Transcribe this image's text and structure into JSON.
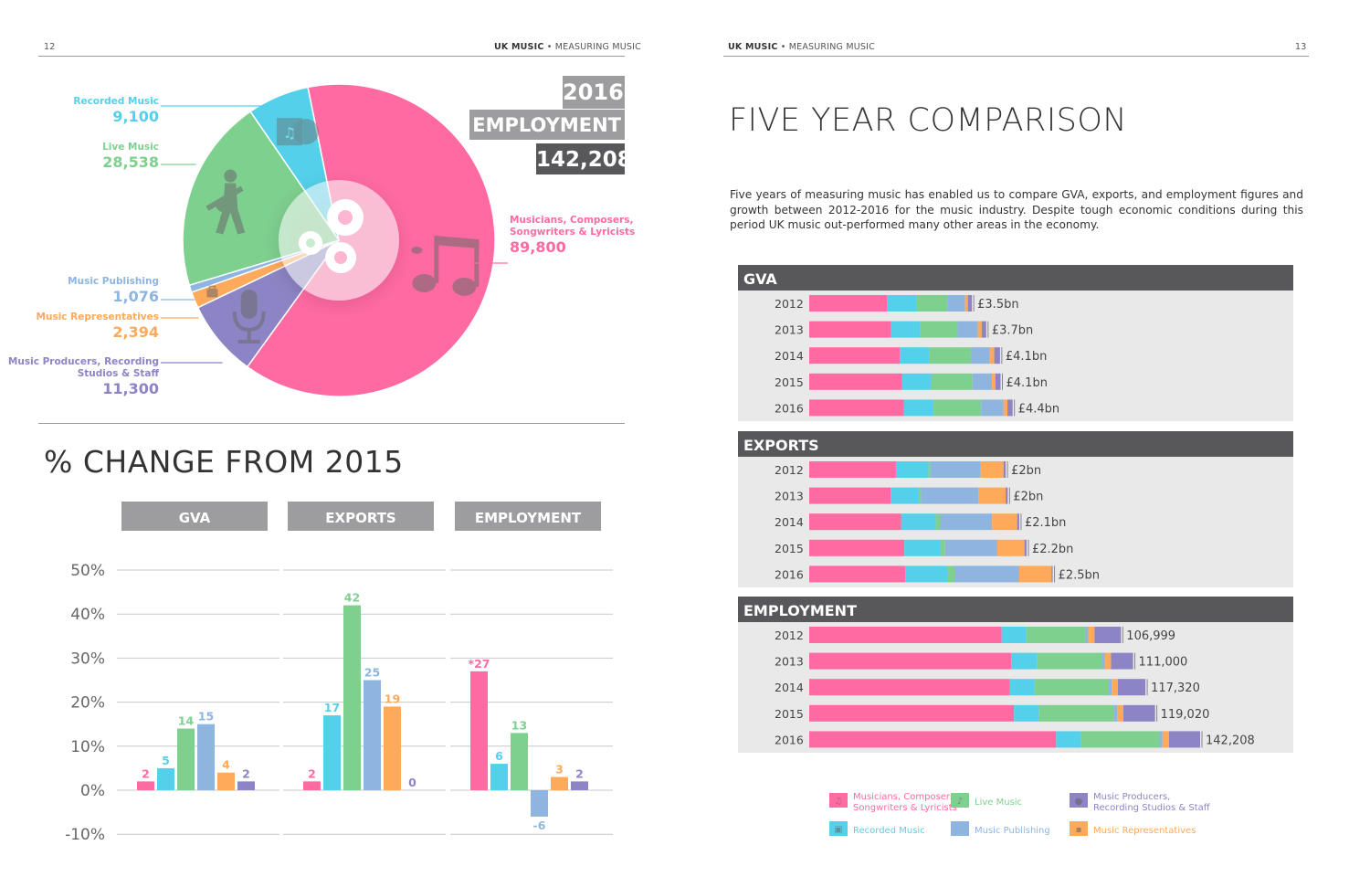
{
  "header": {
    "left_page_number": "12",
    "right_page_number": "13",
    "brand": "UK MUSIC",
    "separator": " • ",
    "subtitle": "MEASURING MUSIC"
  },
  "employment_box": {
    "year": "2016",
    "label": "EMPLOYMENT",
    "total": "142,208"
  },
  "colors": {
    "musicians": "#ff6aa3",
    "recorded": "#54d0ea",
    "live": "#7ed08f",
    "publishing": "#8db5e0",
    "representatives": "#ffa95a",
    "producers": "#8c84c4",
    "section_bar": "#58585a",
    "axis_header": "#9d9d9f"
  },
  "donut": {
    "segments": [
      {
        "key": "musicians",
        "label": "Musicians, Composers, Songwriters & Lyricists",
        "label_lines": [
          "Musicians, Composers,",
          "Songwriters & Lyricists"
        ],
        "value": 89800,
        "value_text": "89,800",
        "icon": "music-notes-icon"
      },
      {
        "key": "producers",
        "label": "Music Producers, Recording Studios & Staff",
        "label_lines": [
          "Music Producers, Recording",
          "Studios & Staff"
        ],
        "value": 11300,
        "value_text": "11,300",
        "icon": "microphone-icon"
      },
      {
        "key": "representatives",
        "label": "Music Representatives",
        "label_lines": [
          "Music Representatives"
        ],
        "value": 2394,
        "value_text": "2,394",
        "icon": "briefcase-icon"
      },
      {
        "key": "publishing",
        "label": "Music Publishing",
        "label_lines": [
          "Music Publishing"
        ],
        "value": 1076,
        "value_text": "1,076",
        "icon": ""
      },
      {
        "key": "live",
        "label": "Live Music",
        "label_lines": [
          "Live Music"
        ],
        "value": 28538,
        "value_text": "28,538",
        "icon": "guitarist-icon"
      },
      {
        "key": "recorded",
        "label": "Recorded Music",
        "label_lines": [
          "Recorded Music"
        ],
        "value": 9100,
        "value_text": "9,100",
        "icon": "record-sleeve-icon"
      }
    ],
    "center_icon": "gears-icon"
  },
  "change_title": "% CHANGE FROM 2015",
  "five_year_title": "FIVE YEAR COMPARISON",
  "intro_text": "Five years of measuring music has enabled us to compare GVA, exports, and employment figures and growth between 2012-2016 for the music industry. Despite tough economic conditions during this period UK music out-performed many other areas in the economy.",
  "chart_data": [
    {
      "type": "bar",
      "title": "% CHANGE FROM 2015",
      "panels": [
        "GVA",
        "EXPORTS",
        "EMPLOYMENT"
      ],
      "ylim": [
        -10,
        50
      ],
      "yticks": [
        -10,
        0,
        10,
        20,
        30,
        40,
        50
      ],
      "ytick_labels": [
        "-10%",
        "0%",
        "10%",
        "20%",
        "30%",
        "40%",
        "50%"
      ],
      "grid": true,
      "series_order": [
        "musicians",
        "recorded",
        "live",
        "publishing",
        "representatives",
        "producers"
      ],
      "values": {
        "GVA": [
          2,
          5,
          14,
          15,
          4,
          2
        ],
        "EXPORTS": [
          2,
          17,
          42,
          25,
          19,
          0
        ],
        "EMPLOYMENT": [
          27,
          6,
          13,
          -6,
          3,
          2
        ]
      },
      "labels": {
        "GVA": [
          "2",
          "5",
          "14",
          "15",
          "4",
          "2"
        ],
        "EXPORTS": [
          "2",
          "17",
          "42",
          "25",
          "19",
          "0"
        ],
        "EMPLOYMENT": [
          "*27",
          "6",
          "13",
          "-6",
          "3",
          "2"
        ]
      }
    },
    {
      "type": "bar",
      "orientation": "horizontal-stacked",
      "title": "FIVE YEAR COMPARISON",
      "stack_order": [
        "musicians",
        "recorded",
        "live",
        "publishing",
        "representatives",
        "producers"
      ],
      "sections": [
        {
          "name": "GVA",
          "scale_max": 4.4,
          "rows": [
            {
              "year": "2012",
              "label": "£3.5bn",
              "values": [
                1.36,
                0.52,
                0.53,
                0.31,
                0.05,
                0.07
              ]
            },
            {
              "year": "2013",
              "label": "£3.7bn",
              "values": [
                1.43,
                0.5,
                0.66,
                0.35,
                0.07,
                0.08
              ]
            },
            {
              "year": "2014",
              "label": "£4.1bn",
              "values": [
                1.58,
                0.51,
                0.73,
                0.33,
                0.08,
                0.1
              ]
            },
            {
              "year": "2015",
              "label": "£4.1bn",
              "values": [
                1.62,
                0.5,
                0.73,
                0.34,
                0.06,
                0.09
              ]
            },
            {
              "year": "2016",
              "label": "£4.4bn",
              "values": [
                1.65,
                0.52,
                0.83,
                0.39,
                0.07,
                0.09
              ]
            }
          ]
        },
        {
          "name": "EXPORTS",
          "scale_max": 2.5,
          "rows": [
            {
              "year": "2012",
              "label": "£2bn",
              "values": [
                0.83,
                0.31,
                0.02,
                0.48,
                0.22,
                0.02
              ]
            },
            {
              "year": "2013",
              "label": "£2bn",
              "values": [
                0.78,
                0.27,
                0.02,
                0.55,
                0.26,
                0.02
              ]
            },
            {
              "year": "2014",
              "label": "£2.1bn",
              "values": [
                0.88,
                0.33,
                0.04,
                0.5,
                0.24,
                0.02
              ]
            },
            {
              "year": "2015",
              "label": "£2.2bn",
              "values": [
                0.91,
                0.35,
                0.04,
                0.5,
                0.26,
                0.02
              ]
            },
            {
              "year": "2016",
              "label": "£2.5bn",
              "values": [
                0.92,
                0.4,
                0.07,
                0.62,
                0.31,
                0.01
              ]
            }
          ]
        },
        {
          "name": "EMPLOYMENT",
          "scale_max": 142208,
          "rows": [
            {
              "year": "2012",
              "label": "106,999",
              "values": [
                70000,
                9000,
                21500,
                1000,
                2300,
                9600
              ]
            },
            {
              "year": "2013",
              "label": "111,000",
              "values": [
                73500,
                9500,
                23500,
                1000,
                2300,
                8000
              ]
            },
            {
              "year": "2014",
              "label": "117,320",
              "values": [
                73000,
                9000,
                27000,
                1000,
                2300,
                10000
              ]
            },
            {
              "year": "2015",
              "label": "119,020",
              "values": [
                74500,
                9000,
                27500,
                1000,
                2300,
                11500
              ]
            },
            {
              "year": "2016",
              "label": "142,208",
              "values": [
                89800,
                9100,
                28538,
                1076,
                2394,
                11300
              ]
            }
          ]
        }
      ]
    }
  ],
  "legend": [
    {
      "key": "musicians",
      "lines": [
        "Musicians, Composers,",
        "Songwriters & Lyricists"
      ],
      "icon": "music-notes-icon"
    },
    {
      "key": "live",
      "lines": [
        "Live Music"
      ],
      "icon": "guitarist-icon"
    },
    {
      "key": "producers",
      "lines": [
        "Music Producers,",
        "Recording Studios & Staff"
      ],
      "icon": "microphone-icon"
    },
    {
      "key": "recorded",
      "lines": [
        "Recorded Music"
      ],
      "icon": "record-sleeve-icon"
    },
    {
      "key": "publishing",
      "lines": [
        "Music Publishing"
      ],
      "icon": ""
    },
    {
      "key": "representatives",
      "lines": [
        "Music Representatives"
      ],
      "icon": "briefcase-icon"
    }
  ]
}
